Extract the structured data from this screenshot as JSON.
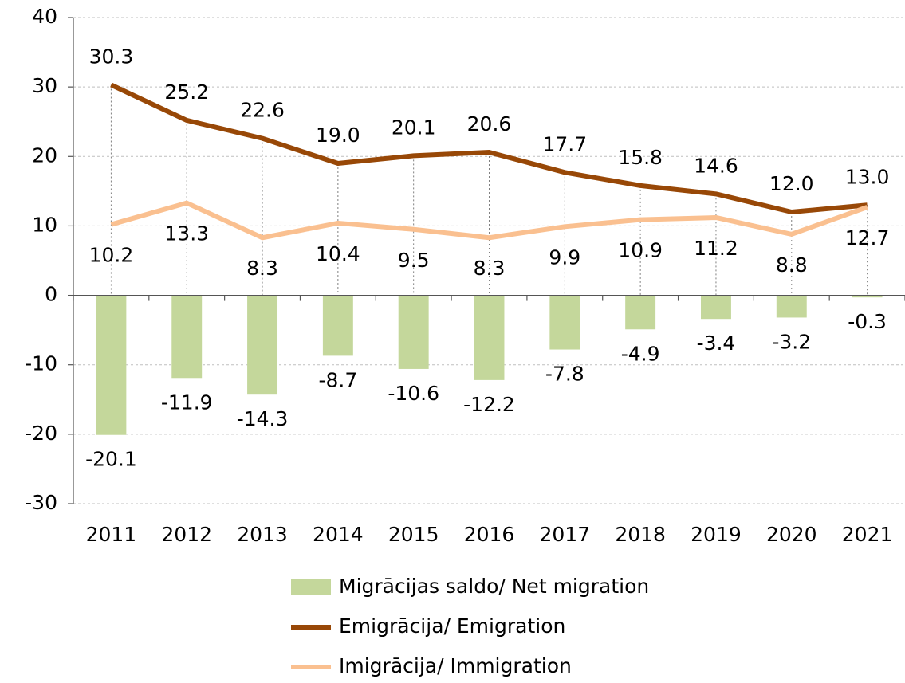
{
  "chart_data": {
    "type": "bar_line",
    "categories": [
      "2011",
      "2012",
      "2013",
      "2014",
      "2015",
      "2016",
      "2017",
      "2018",
      "2019",
      "2020",
      "2021"
    ],
    "series": [
      {
        "name": "Migrācijas saldo/ Net migration",
        "type": "bar",
        "color": "#c4d79b",
        "values": [
          -20.1,
          -11.9,
          -14.3,
          -8.7,
          -10.6,
          -12.2,
          -7.8,
          -4.9,
          -3.4,
          -3.2,
          -0.3
        ]
      },
      {
        "name": "Emigrācija/ Emigration",
        "type": "line",
        "color": "#984807",
        "values": [
          30.3,
          25.2,
          22.6,
          19.0,
          20.1,
          20.6,
          17.7,
          15.8,
          14.6,
          12.0,
          13.0
        ],
        "value_labels": [
          "30.3",
          "25.2",
          "22.6",
          "19.0",
          "20.1",
          "20.6",
          "17.7",
          "15.8",
          "14.6",
          "12.0",
          "13.0"
        ]
      },
      {
        "name": "Imigrācija/ Immigration",
        "type": "line",
        "color": "#fac090",
        "values": [
          10.2,
          13.3,
          8.3,
          10.4,
          9.5,
          8.3,
          9.9,
          10.9,
          11.2,
          8.8,
          12.7
        ]
      }
    ],
    "ylim": [
      -30,
      40
    ],
    "yticks": [
      -30,
      -20,
      -10,
      0,
      10,
      20,
      30,
      40
    ],
    "grid": true,
    "legend": "bottom"
  }
}
